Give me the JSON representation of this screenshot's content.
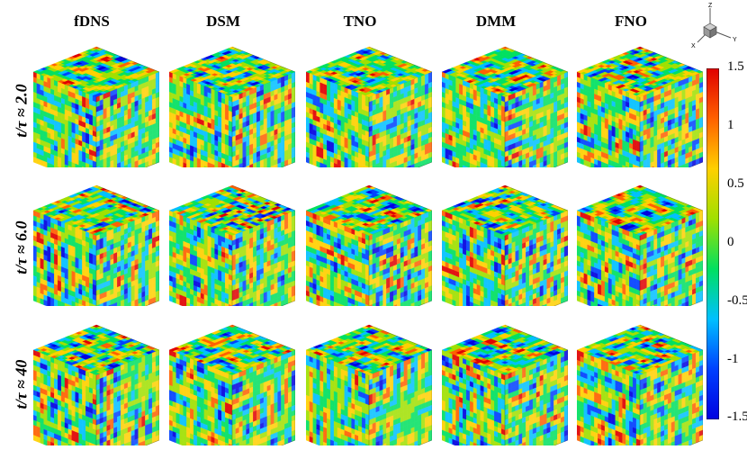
{
  "columns": [
    "fDNS",
    "DSM",
    "TNO",
    "DMM",
    "FNO"
  ],
  "rows": [
    "t/τ ≈ 2.0",
    "t/τ ≈ 6.0",
    "t/τ ≈ 40"
  ],
  "colorbar": {
    "ticks": [
      "1.5",
      "1",
      "0.5",
      "0",
      "-0.5",
      "-1",
      "-1.5"
    ],
    "colors": [
      "#0000e0",
      "#0040ff",
      "#00c0ff",
      "#00e060",
      "#a0e000",
      "#ffd000",
      "#ff6000",
      "#e00000"
    ]
  },
  "axes_triad": {
    "z": "Z",
    "x": "X",
    "y": "Y"
  }
}
